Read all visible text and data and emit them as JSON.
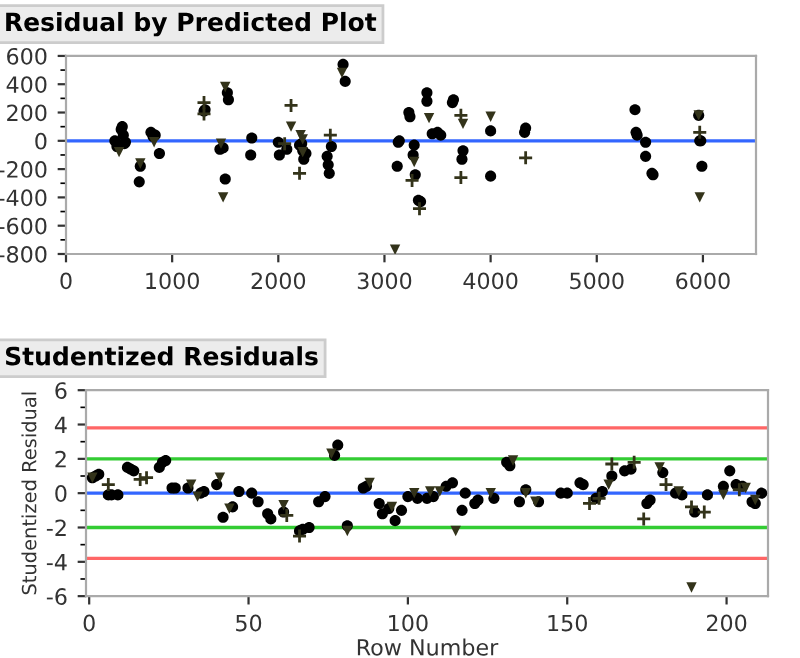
{
  "chart_data": [
    {
      "type": "scatter",
      "title": "Residual by Predicted Plot",
      "xlim": [
        0,
        6500
      ],
      "xticks": [
        0,
        1000,
        2000,
        3000,
        4000,
        5000,
        6000
      ],
      "ylim": [
        -800,
        600
      ],
      "yticks": [
        -800,
        -600,
        -400,
        -200,
        0,
        200,
        400,
        600
      ],
      "grid": false,
      "legend": false,
      "ref_lines": [
        {
          "axis": "y",
          "value": 0,
          "label": null,
          "color": "#3366ff"
        }
      ],
      "series": [
        {
          "color": "#000000",
          "marker": "circle",
          "x": [
            460,
            480,
            520,
            530,
            540,
            560,
            550,
            700,
            690,
            800,
            820,
            840,
            880,
            1300,
            1310,
            1480,
            1450,
            1500,
            1520,
            1530,
            1750,
            1740,
            2000,
            2010,
            2080,
            2200,
            2220,
            2240,
            2230,
            2260,
            2460,
            2470,
            2480,
            2500,
            2610,
            2630,
            3130,
            3140,
            3120,
            3230,
            3240,
            3280,
            3270,
            3290,
            3320,
            3340,
            3400,
            3400,
            3450,
            3500,
            3530,
            3650,
            3640,
            3740,
            3730,
            4000,
            4000,
            4330,
            4320,
            5360,
            5370,
            5380,
            5460,
            5460,
            5520,
            5530,
            5960,
            5970,
            5980,
            5990
          ],
          "values": [
            0,
            -40,
            80,
            100,
            40,
            -10,
            -20,
            -180,
            -290,
            60,
            30,
            40,
            -90,
            210,
            220,
            -50,
            -60,
            -270,
            340,
            290,
            20,
            -100,
            -10,
            -100,
            -60,
            -30,
            -20,
            -130,
            -70,
            -90,
            -110,
            -170,
            -230,
            -40,
            540,
            420,
            -10,
            0,
            -180,
            200,
            170,
            -30,
            -100,
            -240,
            -420,
            -430,
            340,
            280,
            50,
            60,
            40,
            290,
            270,
            -70,
            -130,
            70,
            -250,
            90,
            60,
            220,
            60,
            40,
            -10,
            -110,
            -230,
            -240,
            180,
            0,
            0,
            -180
          ]
        },
        {
          "color": "#33331a",
          "marker": "cross",
          "x": [
            1300,
            1300,
            2120,
            2200,
            2490,
            3260,
            3330,
            3720,
            3720,
            4330,
            5970,
            2060
          ],
          "values": [
            270,
            190,
            250,
            -230,
            40,
            -280,
            -480,
            180,
            -260,
            -120,
            60,
            -20
          ]
        },
        {
          "color": "#33331a",
          "marker": "triangle",
          "x": [
            500,
            700,
            830,
            1460,
            1480,
            1500,
            2120,
            2230,
            2230,
            2600,
            3100,
            3280,
            3420,
            3740,
            4000,
            5960,
            5970,
            2210
          ],
          "values": [
            -80,
            -160,
            -10,
            -20,
            -400,
            380,
            100,
            -80,
            10,
            480,
            -770,
            -150,
            160,
            120,
            170,
            180,
            -400,
            40
          ]
        }
      ]
    },
    {
      "type": "scatter",
      "title": "Studentized Residuals",
      "xlabel": "Row Number",
      "ylabel": "Studentized Residual",
      "xlim": [
        -1,
        213
      ],
      "xticks": [
        0,
        50,
        100,
        150,
        200
      ],
      "ylim": [
        -6,
        6
      ],
      "yticks": [
        -6,
        -4,
        -2,
        0,
        2,
        4,
        6
      ],
      "grid": false,
      "legend": false,
      "ref_lines": [
        {
          "axis": "y",
          "value": 0,
          "label": null,
          "color": "#3366ff"
        },
        {
          "axis": "y",
          "value": 2,
          "label": null,
          "color": "#33cc33"
        },
        {
          "axis": "y",
          "value": -2,
          "label": null,
          "color": "#33cc33"
        },
        {
          "axis": "y",
          "value": 3.8,
          "label": null,
          "color": "#ff6666"
        },
        {
          "axis": "y",
          "value": -3.8,
          "label": null,
          "color": "#ff6666"
        }
      ],
      "series": [
        {
          "color": "#000000",
          "marker": "circle",
          "x": [
            1,
            2,
            3,
            6,
            7,
            9,
            12,
            13,
            14,
            22,
            23,
            24,
            26,
            27,
            31,
            35,
            36,
            40,
            42,
            45,
            47,
            51,
            53,
            56,
            57,
            61,
            66,
            67,
            69,
            72,
            74,
            77,
            78,
            81,
            86,
            87,
            91,
            92,
            94,
            96,
            98,
            100,
            103,
            106,
            108,
            112,
            114,
            117,
            118,
            121,
            122,
            127,
            131,
            132,
            135,
            137,
            141,
            148,
            150,
            154,
            155,
            159,
            161,
            164,
            168,
            170,
            175,
            176,
            180,
            184,
            186,
            190,
            194,
            199,
            201,
            203,
            205,
            208,
            209,
            211
          ],
          "values": [
            0.9,
            1.0,
            1.1,
            -0.1,
            -0.1,
            -0.1,
            1.5,
            1.4,
            1.3,
            1.5,
            1.8,
            1.9,
            0.3,
            0.3,
            0.3,
            0,
            0.1,
            0.5,
            -1.4,
            -0.8,
            0.1,
            0,
            -0.5,
            -1.2,
            -1.5,
            -1.1,
            -2.2,
            -2.1,
            -2.0,
            -0.5,
            -0.2,
            2.2,
            2.8,
            -1.9,
            0.3,
            0.4,
            -0.6,
            -1.2,
            -0.9,
            -1.6,
            -1.0,
            -0.2,
            -0.3,
            -0.3,
            -0.2,
            0.4,
            0.6,
            -1.0,
            0,
            -0.6,
            -0.4,
            -0.3,
            1.8,
            1.6,
            -0.5,
            0.2,
            -0.5,
            0,
            0,
            0.6,
            0.5,
            -0.3,
            0.1,
            1.0,
            1.3,
            1.4,
            -0.6,
            -0.4,
            1.2,
            0,
            -0.1,
            -1.1,
            -0.1,
            0.4,
            1.3,
            0.5,
            0.4,
            -0.5,
            -0.6,
            0
          ]
        },
        {
          "color": "#33331a",
          "marker": "cross",
          "x": [
            6,
            16,
            18,
            62,
            66,
            157,
            160,
            164,
            171,
            174,
            181,
            189,
            193,
            204
          ],
          "values": [
            0.5,
            0.8,
            0.9,
            -1.3,
            -2.5,
            -0.6,
            -0.3,
            1.7,
            1.8,
            -1.5,
            0.5,
            -0.8,
            -1.1,
            0.2
          ]
        },
        {
          "color": "#33331a",
          "marker": "triangle",
          "x": [
            1,
            32,
            34,
            41,
            44,
            61,
            76,
            81,
            88,
            95,
            102,
            107,
            110,
            115,
            126,
            133,
            137,
            140,
            163,
            179,
            185,
            189,
            199,
            206,
            209
          ],
          "values": [
            0.9,
            0.5,
            -0.2,
            0.9,
            -0.9,
            -0.7,
            2.3,
            -2.2,
            0.6,
            -0.8,
            0,
            0.1,
            0.1,
            -2.2,
            0,
            1.9,
            0,
            -0.5,
            0.5,
            1.5,
            0.1,
            -5.5,
            -0.1,
            0.3,
            -0.4
          ]
        }
      ]
    }
  ]
}
